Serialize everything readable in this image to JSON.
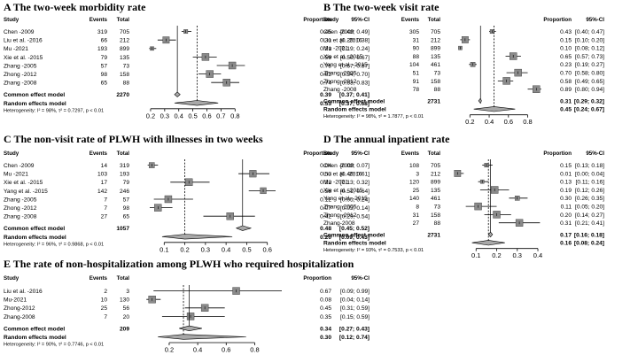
{
  "headers": {
    "study": "Study",
    "events": "Events",
    "total": "Total",
    "proportion": "Proportion",
    "ci": "95%-CI"
  },
  "chart_data": [
    {
      "type": "forest",
      "title": "A  The two-week morbidity rate",
      "rows": [
        {
          "study": "Chen -2009",
          "events": "319",
          "total": "705",
          "est": 0.45,
          "lo": 0.42,
          "hi": 0.49,
          "prop": "0.45",
          "ci": "[0.42; 0.49]"
        },
        {
          "study": "Liu et al. -2016",
          "events": "66",
          "total": "212",
          "est": 0.31,
          "lo": 0.25,
          "hi": 0.38,
          "prop": "0.31",
          "ci": "[0.25; 0.38]"
        },
        {
          "study": "Mu -2021",
          "events": "193",
          "total": "899",
          "est": 0.21,
          "lo": 0.19,
          "hi": 0.24,
          "prop": "0.21",
          "ci": "[0.19; 0.24]"
        },
        {
          "study": "Xie et al. -2015",
          "events": "79",
          "total": "135",
          "est": 0.59,
          "lo": 0.5,
          "hi": 0.67,
          "prop": "0.59",
          "ci": "[0.50; 0.67]"
        },
        {
          "study": "Zhang -2005",
          "events": "57",
          "total": "73",
          "est": 0.78,
          "lo": 0.67,
          "hi": 0.87,
          "prop": "0.78",
          "ci": "[0.67; 0.87]"
        },
        {
          "study": "Zhong -2012",
          "events": "98",
          "total": "158",
          "est": 0.62,
          "lo": 0.54,
          "hi": 0.7,
          "prop": "0.62",
          "ci": "[0.54; 0.70]"
        },
        {
          "study": "Zhang -2008",
          "events": "65",
          "total": "88",
          "est": 0.74,
          "lo": 0.63,
          "hi": 0.83,
          "prop": "0.74",
          "ci": "[0.63; 0.83]"
        }
      ],
      "common": {
        "label": "Common effect model",
        "total": "2270",
        "est": 0.39,
        "lo": 0.37,
        "hi": 0.41,
        "prop": "0.39",
        "ci": "[0.37; 0.41]"
      },
      "random": {
        "label": "Random effects model",
        "est": 0.53,
        "lo": 0.37,
        "hi": 0.68,
        "prop": "0.53",
        "ci": "[0.37; 0.68]"
      },
      "heterogeneity": "Heterogeneity: I² = 98%, τ² = 0.7297, p < 0.01",
      "ticks": [
        "0.2",
        "0.3",
        "0.4",
        "0.5",
        "0.6",
        "0.7",
        "0.8"
      ],
      "tick_values": [
        0.2,
        0.3,
        0.4,
        0.5,
        0.6,
        0.7,
        0.8
      ],
      "xlim": [
        0.15,
        0.88
      ]
    },
    {
      "type": "forest",
      "title": "B  The two-week visit rate",
      "rows": [
        {
          "study": "Chen -2009",
          "events": "305",
          "total": "705",
          "est": 0.43,
          "lo": 0.4,
          "hi": 0.47,
          "prop": "0.43",
          "ci": "[0.40; 0.47]"
        },
        {
          "study": "Liu et al. -2016",
          "events": "31",
          "total": "212",
          "est": 0.15,
          "lo": 0.1,
          "hi": 0.2,
          "prop": "0.15",
          "ci": "[0.10; 0.20]"
        },
        {
          "study": "Mu -2021",
          "events": "90",
          "total": "899",
          "est": 0.1,
          "lo": 0.08,
          "hi": 0.12,
          "prop": "0.10",
          "ci": "[0.08; 0.12]"
        },
        {
          "study": "Xie et al. -2015",
          "events": "88",
          "total": "135",
          "est": 0.65,
          "lo": 0.57,
          "hi": 0.73,
          "prop": "0.65",
          "ci": "[0.57; 0.73]"
        },
        {
          "study": "Yang et al. -2015",
          "events": "104",
          "total": "461",
          "est": 0.23,
          "lo": 0.19,
          "hi": 0.27,
          "prop": "0.23",
          "ci": "[0.19; 0.27]"
        },
        {
          "study": "Zhang -2005",
          "events": "51",
          "total": "73",
          "est": 0.7,
          "lo": 0.58,
          "hi": 0.8,
          "prop": "0.70",
          "ci": "[0.58; 0.80]"
        },
        {
          "study": "Zhong -2012",
          "events": "91",
          "total": "158",
          "est": 0.58,
          "lo": 0.49,
          "hi": 0.65,
          "prop": "0.58",
          "ci": "[0.49; 0.65]"
        },
        {
          "study": "Zhang -2008",
          "events": "78",
          "total": "88",
          "est": 0.89,
          "lo": 0.8,
          "hi": 0.94,
          "prop": "0.89",
          "ci": "[0.80; 0.94]"
        }
      ],
      "common": {
        "label": "Common effect model",
        "total": "2731",
        "est": 0.31,
        "lo": 0.29,
        "hi": 0.32,
        "prop": "0.31",
        "ci": "[0.29; 0.32]"
      },
      "random": {
        "label": "Random effects model",
        "est": 0.45,
        "lo": 0.24,
        "hi": 0.67,
        "prop": "0.45",
        "ci": "[0.24; 0.67]"
      },
      "heterogeneity": "Heterogeneity: I² = 98%, τ² = 1.7877, p < 0.01",
      "ticks": [
        "0.2",
        "0.4",
        "0.6",
        "0.8"
      ],
      "tick_values": [
        0.2,
        0.4,
        0.6,
        0.8
      ],
      "xlim": [
        0.05,
        0.97
      ]
    },
    {
      "type": "forest",
      "title": "C  The non-visit rate of PLWH with illnesses in two weeks",
      "rows": [
        {
          "study": "Chen -2009",
          "events": "14",
          "total": "319",
          "est": 0.04,
          "lo": 0.02,
          "hi": 0.07,
          "prop": "0.04",
          "ci": "[0.02; 0.07]"
        },
        {
          "study": "Mu -2021",
          "events": "103",
          "total": "193",
          "est": 0.53,
          "lo": 0.46,
          "hi": 0.61,
          "prop": "0.53",
          "ci": "[0.46; 0.61]"
        },
        {
          "study": "Xie et al. -2015",
          "events": "17",
          "total": "79",
          "est": 0.22,
          "lo": 0.13,
          "hi": 0.32,
          "prop": "0.22",
          "ci": "[0.13; 0.32]"
        },
        {
          "study": "Yang et al. -2015",
          "events": "142",
          "total": "246",
          "est": 0.58,
          "lo": 0.51,
          "hi": 0.64,
          "prop": "0.58",
          "ci": "[0.51; 0.64]"
        },
        {
          "study": "Zhang -2005",
          "events": "7",
          "total": "57",
          "est": 0.12,
          "lo": 0.05,
          "hi": 0.24,
          "prop": "0.12",
          "ci": "[0.05; 0.24]"
        },
        {
          "study": "Zhong -2012",
          "events": "7",
          "total": "98",
          "est": 0.07,
          "lo": 0.03,
          "hi": 0.14,
          "prop": "0.07",
          "ci": "[0.03; 0.14]"
        },
        {
          "study": "Zhang -2008",
          "events": "27",
          "total": "65",
          "est": 0.42,
          "lo": 0.29,
          "hi": 0.54,
          "prop": "0.42",
          "ci": "[0.29; 0.54]"
        }
      ],
      "common": {
        "label": "Common effect model",
        "total": "1057",
        "est": 0.48,
        "lo": 0.45,
        "hi": 0.52,
        "prop": "0.48",
        "ci": "[0.45; 0.52]"
      },
      "random": {
        "label": "Random effects model",
        "est": 0.2,
        "lo": 0.09,
        "hi": 0.43,
        "prop": "0.20",
        "ci": "[0.09; 0.43]"
      },
      "heterogeneity": "Heterogeneity: I² = 96%, τ² = 0.9868, p < 0.01",
      "ticks": [
        "0.1",
        "0.2",
        "0.3",
        "0.4",
        "0.5",
        "0.6"
      ],
      "tick_values": [
        0.1,
        0.2,
        0.3,
        0.4,
        0.5,
        0.6
      ],
      "xlim": [
        0.0,
        0.67
      ]
    },
    {
      "type": "forest",
      "title": "D  The annual inpatient rate",
      "rows": [
        {
          "study": "Chen -2009",
          "events": "108",
          "total": "705",
          "est": 0.15,
          "lo": 0.13,
          "hi": 0.18,
          "prop": "0.15",
          "ci": "[0.13; 0.18]"
        },
        {
          "study": "Liu et al. -2016",
          "events": "3",
          "total": "212",
          "est": 0.01,
          "lo": 0.0,
          "hi": 0.04,
          "prop": "0.01",
          "ci": "[0.00; 0.04]"
        },
        {
          "study": "Mu -2021",
          "events": "120",
          "total": "899",
          "est": 0.13,
          "lo": 0.11,
          "hi": 0.16,
          "prop": "0.13",
          "ci": "[0.11; 0.16]"
        },
        {
          "study": "Xie et al. -2015",
          "events": "25",
          "total": "135",
          "est": 0.19,
          "lo": 0.12,
          "hi": 0.26,
          "prop": "0.19",
          "ci": "[0.12; 0.26]"
        },
        {
          "study": "Yang et al. -2015",
          "events": "140",
          "total": "461",
          "est": 0.3,
          "lo": 0.26,
          "hi": 0.35,
          "prop": "0.30",
          "ci": "[0.26; 0.35]"
        },
        {
          "study": "Zhang -2005",
          "events": "8",
          "total": "73",
          "est": 0.11,
          "lo": 0.05,
          "hi": 0.2,
          "prop": "0.11",
          "ci": "[0.05; 0.20]"
        },
        {
          "study": "Zhong -2012",
          "events": "31",
          "total": "158",
          "est": 0.2,
          "lo": 0.14,
          "hi": 0.27,
          "prop": "0.20",
          "ci": "[0.14; 0.27]"
        },
        {
          "study": "Zhang-2008",
          "events": "27",
          "total": "88",
          "est": 0.31,
          "lo": 0.21,
          "hi": 0.41,
          "prop": "0.31",
          "ci": "[0.21; 0.41]"
        }
      ],
      "common": {
        "label": "Common effect model",
        "total": "2731",
        "est": 0.17,
        "lo": 0.16,
        "hi": 0.18,
        "prop": "0.17",
        "ci": "[0.16; 0.18]"
      },
      "random": {
        "label": "Random effects model",
        "est": 0.16,
        "lo": 0.08,
        "hi": 0.24,
        "prop": "0.16",
        "ci": "[0.08; 0.24]"
      },
      "heterogeneity": "Heterogeneity: I² = 93%, τ² = 0.7533, p < 0.01",
      "ticks": [
        "0.1",
        "0.2",
        "0.3",
        "0.4"
      ],
      "tick_values": [
        0.1,
        0.2,
        0.3,
        0.4
      ],
      "xlim": [
        0.0,
        0.43
      ]
    },
    {
      "type": "forest",
      "title": "E  The rate of non-hospitalization among PLWH who required hospitalization",
      "rows": [
        {
          "study": "Liu et al. -2016",
          "events": "2",
          "total": "3",
          "est": 0.67,
          "lo": 0.09,
          "hi": 0.99,
          "prop": "0.67",
          "ci": "[0.09; 0.99]"
        },
        {
          "study": "Mu-2021",
          "events": "10",
          "total": "130",
          "est": 0.08,
          "lo": 0.04,
          "hi": 0.14,
          "prop": "0.08",
          "ci": "[0.04; 0.14]"
        },
        {
          "study": "Zhong-2012",
          "events": "25",
          "total": "56",
          "est": 0.45,
          "lo": 0.31,
          "hi": 0.59,
          "prop": "0.45",
          "ci": "[0.31; 0.59]"
        },
        {
          "study": "Zhang-2008",
          "events": "7",
          "total": "20",
          "est": 0.35,
          "lo": 0.15,
          "hi": 0.59,
          "prop": "0.35",
          "ci": "[0.15; 0.59]"
        }
      ],
      "common": {
        "label": "Common effect model",
        "total": "209",
        "est": 0.34,
        "lo": 0.27,
        "hi": 0.43,
        "prop": "0.34",
        "ci": "[0.27; 0.43]"
      },
      "random": {
        "label": "Random effects model",
        "est": 0.3,
        "lo": 0.12,
        "hi": 0.74,
        "prop": "0.30",
        "ci": "[0.12; 0.74]"
      },
      "heterogeneity": "Heterogeneity: I² = 90%, τ² = 0.7746, p < 0.01",
      "ticks": [
        "0.2",
        "0.4",
        "0.6",
        "0.8"
      ],
      "tick_values": [
        0.2,
        0.4,
        0.6,
        0.8
      ],
      "xlim": [
        0.02,
        0.99
      ]
    }
  ]
}
